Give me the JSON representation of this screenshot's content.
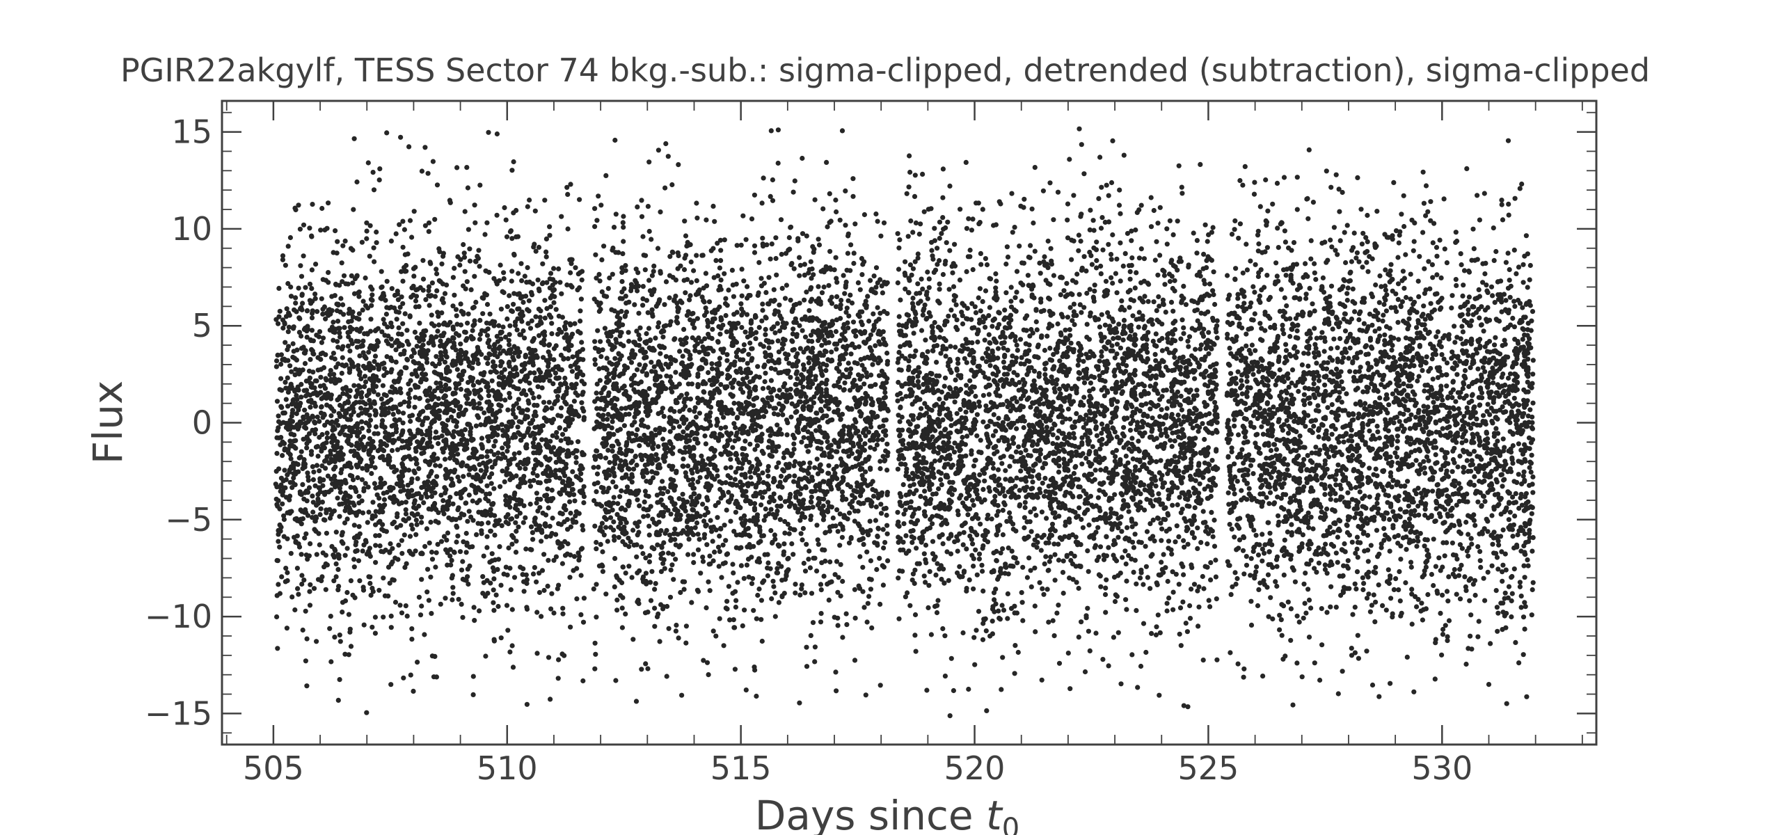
{
  "chart_data": {
    "type": "scatter",
    "title": "PGIR22akgylf, TESS Sector 74 bkg.-sub.: sigma-clipped, detrended (subtraction), sigma-clipped",
    "xlabel": {
      "prefix": "Days since ",
      "symbol": "t",
      "subscript": "0"
    },
    "ylabel": "Flux",
    "xlim": [
      503.9,
      533.3
    ],
    "ylim": [
      -16.6,
      16.6
    ],
    "x_ticks": [
      505,
      510,
      515,
      520,
      525,
      530
    ],
    "x_tick_labels": [
      "505",
      "510",
      "515",
      "520",
      "525",
      "530"
    ],
    "y_ticks": [
      15,
      10,
      5,
      0,
      -5,
      -10,
      -15
    ],
    "y_tick_labels": [
      "15",
      "10",
      "5",
      "0",
      "−5",
      "−10",
      "−15"
    ],
    "x_minor_step": 1,
    "y_minor_step": 1,
    "grid": false,
    "legend": "none",
    "marker_color": "#262626",
    "segments": [
      {
        "x_start": 505.05,
        "x_end": 511.65
      },
      {
        "x_start": 511.85,
        "x_end": 518.15
      },
      {
        "x_start": 518.35,
        "x_end": 525.2
      },
      {
        "x_start": 525.4,
        "x_end": 531.95
      }
    ],
    "y_distribution": {
      "mean": 0.0,
      "std_dev": 5.0,
      "clip_min": -15.3,
      "clip_max": 15.3
    },
    "n_points_approx": 13200
  }
}
